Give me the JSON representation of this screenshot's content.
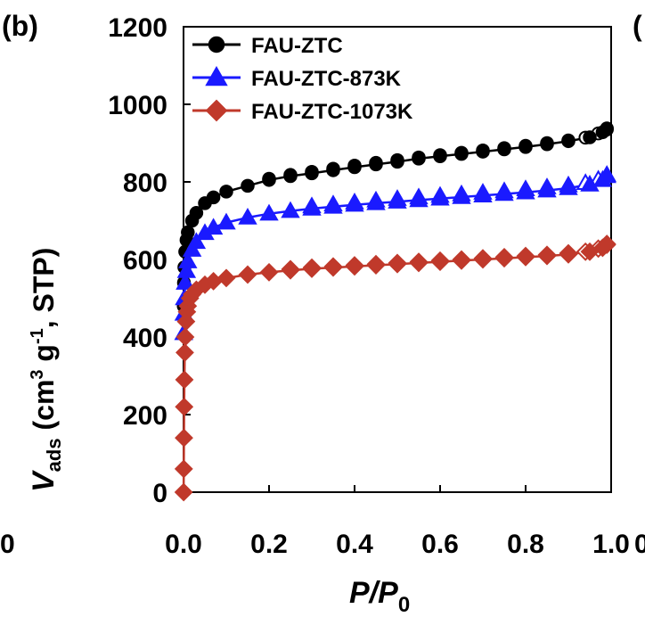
{
  "panel_label": "(b)",
  "edge_glyphs": {
    "left": "0",
    "right_top": "(",
    "right_axis": "0"
  },
  "colors": {
    "black": "#000000",
    "blue": "#1a1aff",
    "red": "#c0392b"
  },
  "chart_data": {
    "type": "scatter",
    "xlabel": {
      "main": "P/P",
      "sub": "0"
    },
    "ylabel": {
      "main": "V",
      "sub": "ads",
      "rest": " (cm",
      "sup": "3",
      "rest2": " g",
      "sup2": "-1",
      "rest3": ", STP)"
    },
    "xlim": [
      0,
      1.0
    ],
    "ylim": [
      0,
      1200
    ],
    "x_ticks": [
      "0.0",
      "0.2",
      "0.4",
      "0.6",
      "0.8",
      "1.0"
    ],
    "y_ticks": [
      "0",
      "200",
      "400",
      "600",
      "800",
      "1000",
      "1200"
    ],
    "legend_position": "top-left",
    "series": [
      {
        "name": "FAU-ZTC",
        "marker": "circle",
        "color": "#000000",
        "adsorption": [
          [
            0.0005,
            480
          ],
          [
            0.001,
            540
          ],
          [
            0.002,
            580
          ],
          [
            0.004,
            620
          ],
          [
            0.007,
            650
          ],
          [
            0.01,
            670
          ],
          [
            0.02,
            700
          ],
          [
            0.03,
            720
          ],
          [
            0.05,
            745
          ],
          [
            0.07,
            760
          ],
          [
            0.1,
            775
          ],
          [
            0.15,
            790
          ],
          [
            0.2,
            805
          ],
          [
            0.25,
            815
          ],
          [
            0.3,
            822
          ],
          [
            0.35,
            830
          ],
          [
            0.4,
            838
          ],
          [
            0.45,
            845
          ],
          [
            0.5,
            852
          ],
          [
            0.55,
            860
          ],
          [
            0.6,
            866
          ],
          [
            0.65,
            872
          ],
          [
            0.7,
            878
          ],
          [
            0.75,
            884
          ],
          [
            0.8,
            890
          ],
          [
            0.85,
            897
          ],
          [
            0.9,
            905
          ],
          [
            0.95,
            915
          ],
          [
            0.98,
            928
          ],
          [
            0.99,
            935
          ]
        ],
        "desorption": [
          [
            0.99,
            938
          ],
          [
            0.97,
            925
          ],
          [
            0.94,
            914
          ],
          [
            0.9,
            907
          ],
          [
            0.85,
            900
          ],
          [
            0.8,
            893
          ],
          [
            0.75,
            887
          ],
          [
            0.7,
            881
          ],
          [
            0.65,
            875
          ],
          [
            0.6,
            869
          ],
          [
            0.55,
            863
          ],
          [
            0.5,
            856
          ],
          [
            0.45,
            849
          ],
          [
            0.4,
            842
          ],
          [
            0.35,
            834
          ],
          [
            0.3,
            826
          ],
          [
            0.25,
            818
          ],
          [
            0.2,
            808
          ]
        ]
      },
      {
        "name": "FAU-ZTC-873K",
        "marker": "triangle",
        "color": "#1a1aff",
        "adsorption": [
          [
            0.0005,
            410
          ],
          [
            0.001,
            460
          ],
          [
            0.002,
            500
          ],
          [
            0.004,
            540
          ],
          [
            0.007,
            570
          ],
          [
            0.01,
            595
          ],
          [
            0.02,
            625
          ],
          [
            0.03,
            645
          ],
          [
            0.05,
            668
          ],
          [
            0.07,
            682
          ],
          [
            0.1,
            695
          ],
          [
            0.15,
            708
          ],
          [
            0.2,
            718
          ],
          [
            0.25,
            725
          ],
          [
            0.3,
            731
          ],
          [
            0.35,
            736
          ],
          [
            0.4,
            741
          ],
          [
            0.45,
            745
          ],
          [
            0.5,
            749
          ],
          [
            0.55,
            753
          ],
          [
            0.6,
            757
          ],
          [
            0.65,
            761
          ],
          [
            0.7,
            765
          ],
          [
            0.75,
            769
          ],
          [
            0.8,
            773
          ],
          [
            0.85,
            778
          ],
          [
            0.9,
            784
          ],
          [
            0.95,
            793
          ],
          [
            0.98,
            805
          ],
          [
            0.99,
            815
          ]
        ],
        "desorption": [
          [
            0.99,
            818
          ],
          [
            0.97,
            806
          ],
          [
            0.94,
            797
          ],
          [
            0.9,
            791
          ],
          [
            0.85,
            786
          ],
          [
            0.8,
            781
          ],
          [
            0.75,
            776
          ],
          [
            0.7,
            772
          ],
          [
            0.65,
            768
          ],
          [
            0.6,
            764
          ],
          [
            0.55,
            760
          ],
          [
            0.5,
            756
          ],
          [
            0.45,
            752
          ],
          [
            0.4,
            747
          ],
          [
            0.35,
            742
          ],
          [
            0.3,
            737
          ]
        ]
      },
      {
        "name": "FAU-ZTC-1073K",
        "marker": "diamond",
        "color": "#c0392b",
        "adsorption": [
          [
            0.0003,
            0
          ],
          [
            0.0006,
            60
          ],
          [
            0.001,
            140
          ],
          [
            0.0015,
            220
          ],
          [
            0.002,
            290
          ],
          [
            0.003,
            360
          ],
          [
            0.004,
            400
          ],
          [
            0.006,
            440
          ],
          [
            0.008,
            465
          ],
          [
            0.01,
            480
          ],
          [
            0.015,
            500
          ],
          [
            0.02,
            510
          ],
          [
            0.03,
            522
          ],
          [
            0.05,
            535
          ],
          [
            0.07,
            544
          ],
          [
            0.1,
            552
          ],
          [
            0.15,
            561
          ],
          [
            0.2,
            567
          ],
          [
            0.25,
            572
          ],
          [
            0.3,
            576
          ],
          [
            0.35,
            579
          ],
          [
            0.4,
            582
          ],
          [
            0.45,
            585
          ],
          [
            0.5,
            588
          ],
          [
            0.55,
            591
          ],
          [
            0.6,
            594
          ],
          [
            0.65,
            597
          ],
          [
            0.7,
            600
          ],
          [
            0.75,
            603
          ],
          [
            0.8,
            606
          ],
          [
            0.85,
            609
          ],
          [
            0.9,
            613
          ],
          [
            0.95,
            620
          ],
          [
            0.98,
            630
          ],
          [
            0.99,
            638
          ]
        ],
        "desorption": [
          [
            0.99,
            640
          ],
          [
            0.97,
            628
          ],
          [
            0.94,
            620
          ],
          [
            0.9,
            616
          ],
          [
            0.85,
            612
          ],
          [
            0.8,
            609
          ],
          [
            0.75,
            606
          ],
          [
            0.7,
            603
          ],
          [
            0.65,
            600
          ],
          [
            0.6,
            597
          ],
          [
            0.55,
            594
          ],
          [
            0.5,
            591
          ],
          [
            0.45,
            588
          ],
          [
            0.4,
            585
          ],
          [
            0.35,
            582
          ],
          [
            0.3,
            579
          ],
          [
            0.25,
            575
          ]
        ]
      }
    ]
  }
}
